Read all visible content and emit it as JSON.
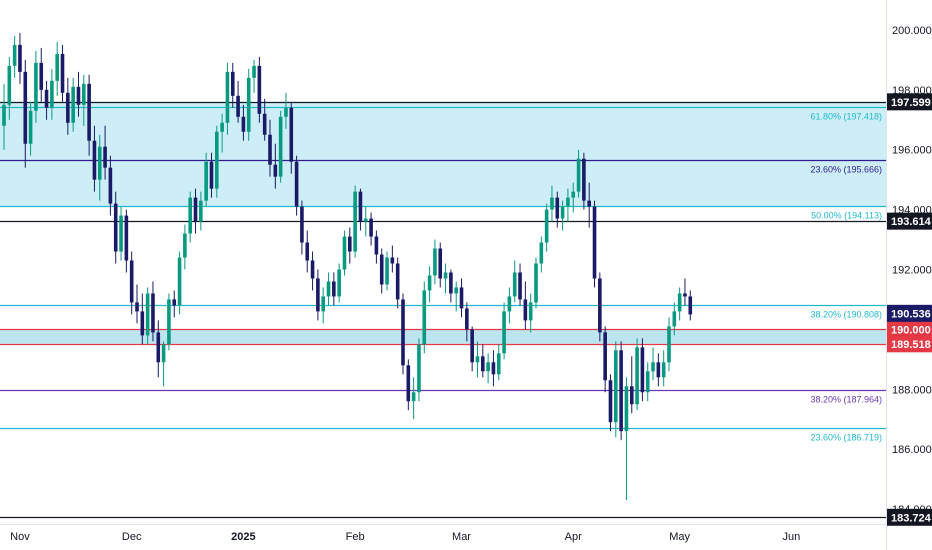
{
  "chart_data": {
    "type": "candlestick",
    "price_axis": {
      "ylim": [
        183.5,
        201.0
      ],
      "tick_values": [
        184,
        186,
        188,
        190,
        192,
        194,
        196,
        198,
        200
      ],
      "tick_labels": [
        "184.000",
        "186.000",
        "188.000",
        "190.000",
        "192.000",
        "194.000",
        "196.000",
        "198.000",
        "200.000"
      ]
    },
    "time_axis": {
      "labels": [
        {
          "text": "Nov",
          "index": 3,
          "bold": false
        },
        {
          "text": "Dec",
          "index": 24,
          "bold": false
        },
        {
          "text": "2025",
          "index": 45,
          "bold": true
        },
        {
          "text": "Feb",
          "index": 66,
          "bold": false
        },
        {
          "text": "Mar",
          "index": 86,
          "bold": false
        },
        {
          "text": "Apr",
          "index": 107,
          "bold": false
        },
        {
          "text": "May",
          "index": 127,
          "bold": false
        },
        {
          "text": "Jun",
          "index": 148,
          "bold": false
        }
      ]
    },
    "zones": [
      {
        "from": 194.113,
        "to": 197.599,
        "color": "#cdeef6"
      },
      {
        "from": 189.518,
        "to": 190.0,
        "color": "#bde5f0"
      }
    ],
    "levels": [
      {
        "value": 197.599,
        "color": "#131722",
        "label": "",
        "badge": "197.599",
        "badge_color": "#131722"
      },
      {
        "value": 197.418,
        "color": "#22b8cf",
        "label": "61.80% (197.418)",
        "badge": "",
        "badge_color": ""
      },
      {
        "value": 195.666,
        "color": "#311b92",
        "label": "23.60% (195.666)",
        "badge": "",
        "badge_color": ""
      },
      {
        "value": 194.113,
        "color": "#22b8cf",
        "label": "50.00% (194.113)",
        "badge": "",
        "badge_color": ""
      },
      {
        "value": 193.614,
        "color": "#131722",
        "label": "",
        "badge": "193.614",
        "badge_color": "#131722"
      },
      {
        "value": 190.808,
        "color": "#22b8cf",
        "label": "38.20% (190.808)",
        "badge": "",
        "badge_color": ""
      },
      {
        "value": 190.0,
        "color": "#e53945",
        "label": "",
        "badge": "190.000",
        "badge_color": "#e53945"
      },
      {
        "value": 189.518,
        "color": "#e53945",
        "label": "",
        "badge": "189.518",
        "badge_color": "#e53945"
      },
      {
        "value": 187.964,
        "color": "#673ab7",
        "label": "38.20% (187.964)",
        "badge": "",
        "badge_color": ""
      },
      {
        "value": 186.719,
        "color": "#22b8cf",
        "label": "23.60% (186.719)",
        "badge": "",
        "badge_color": ""
      },
      {
        "value": 183.724,
        "color": "#131722",
        "label": "",
        "badge": "183.724",
        "badge_color": "#131722"
      }
    ],
    "last_price": {
      "value": 190.536,
      "badge": "190.536",
      "color": "#1a1a66"
    },
    "colors": {
      "up": "#089981",
      "down": "#1a1a66"
    },
    "candles": [
      [
        196.8,
        198.2,
        196.0,
        197.5
      ],
      [
        197.5,
        199.1,
        197.0,
        198.8
      ],
      [
        198.8,
        199.8,
        198.4,
        199.5
      ],
      [
        199.5,
        199.9,
        198.2,
        198.6
      ],
      [
        198.6,
        199.0,
        195.4,
        196.2
      ],
      [
        196.2,
        197.6,
        195.8,
        197.3
      ],
      [
        197.3,
        199.3,
        196.9,
        198.9
      ],
      [
        198.9,
        199.4,
        197.6,
        198.0
      ],
      [
        198.0,
        198.3,
        197.0,
        197.4
      ],
      [
        197.4,
        198.7,
        197.0,
        198.3
      ],
      [
        198.3,
        199.6,
        197.8,
        199.2
      ],
      [
        199.2,
        199.5,
        197.6,
        197.9
      ],
      [
        197.9,
        198.4,
        196.5,
        196.9
      ],
      [
        196.9,
        198.4,
        196.6,
        198.1
      ],
      [
        198.1,
        198.6,
        197.1,
        197.5
      ],
      [
        197.5,
        198.5,
        196.8,
        198.2
      ],
      [
        198.2,
        198.5,
        195.8,
        196.3
      ],
      [
        196.3,
        196.8,
        194.6,
        195.0
      ],
      [
        195.0,
        196.5,
        194.3,
        196.1
      ],
      [
        196.1,
        196.8,
        195.0,
        195.4
      ],
      [
        195.4,
        195.8,
        193.8,
        194.2
      ],
      [
        194.2,
        194.6,
        192.2,
        192.6
      ],
      [
        192.6,
        194.1,
        192.3,
        193.8
      ],
      [
        193.8,
        194.0,
        191.9,
        192.3
      ],
      [
        192.3,
        192.6,
        190.5,
        190.9
      ],
      [
        190.9,
        191.5,
        190.2,
        190.6
      ],
      [
        190.6,
        191.2,
        189.5,
        189.8
      ],
      [
        189.8,
        191.4,
        189.5,
        191.2
      ],
      [
        191.2,
        191.6,
        189.6,
        189.9
      ],
      [
        189.9,
        190.3,
        188.4,
        188.9
      ],
      [
        188.9,
        189.6,
        188.1,
        189.5
      ],
      [
        189.5,
        191.2,
        189.3,
        191.0
      ],
      [
        191.0,
        191.3,
        190.4,
        190.8
      ],
      [
        190.8,
        192.6,
        190.5,
        192.4
      ],
      [
        192.4,
        193.5,
        192.0,
        193.2
      ],
      [
        193.2,
        194.6,
        192.9,
        194.4
      ],
      [
        194.4,
        194.7,
        193.2,
        193.6
      ],
      [
        193.6,
        194.6,
        193.3,
        194.3
      ],
      [
        194.3,
        195.9,
        194.1,
        195.6
      ],
      [
        195.6,
        195.9,
        194.4,
        194.7
      ],
      [
        194.7,
        196.8,
        194.4,
        196.6
      ],
      [
        196.6,
        197.2,
        195.9,
        196.9
      ],
      [
        196.9,
        198.9,
        196.5,
        198.6
      ],
      [
        198.6,
        198.9,
        197.4,
        197.8
      ],
      [
        197.8,
        198.3,
        196.9,
        197.1
      ],
      [
        197.1,
        197.5,
        196.3,
        196.6
      ],
      [
        196.6,
        198.7,
        196.3,
        198.4
      ],
      [
        198.4,
        199.0,
        197.9,
        198.8
      ],
      [
        198.8,
        199.1,
        196.9,
        197.2
      ],
      [
        197.2,
        197.7,
        196.3,
        196.5
      ],
      [
        196.5,
        197.0,
        195.1,
        195.5
      ],
      [
        195.5,
        196.2,
        194.7,
        195.1
      ],
      [
        195.1,
        197.3,
        194.9,
        197.1
      ],
      [
        197.1,
        197.9,
        196.7,
        197.4
      ],
      [
        197.4,
        197.6,
        195.2,
        195.6
      ],
      [
        195.6,
        195.8,
        193.8,
        194.1
      ],
      [
        194.1,
        194.3,
        192.5,
        192.9
      ],
      [
        192.9,
        193.3,
        191.9,
        192.3
      ],
      [
        192.3,
        192.6,
        191.3,
        191.7
      ],
      [
        191.7,
        192.0,
        190.3,
        190.6
      ],
      [
        190.6,
        191.4,
        190.2,
        191.1
      ],
      [
        191.1,
        191.9,
        190.8,
        191.6
      ],
      [
        191.6,
        191.9,
        190.8,
        191.1
      ],
      [
        191.1,
        192.2,
        190.9,
        192.0
      ],
      [
        192.0,
        193.3,
        191.8,
        193.1
      ],
      [
        193.1,
        193.4,
        192.2,
        192.6
      ],
      [
        192.6,
        194.8,
        192.4,
        194.6
      ],
      [
        194.6,
        194.7,
        193.3,
        193.6
      ],
      [
        193.6,
        194.1,
        193.1,
        193.7
      ],
      [
        193.7,
        193.9,
        192.8,
        193.1
      ],
      [
        193.1,
        193.3,
        192.2,
        192.5
      ],
      [
        192.5,
        192.7,
        191.2,
        191.5
      ],
      [
        191.5,
        192.6,
        191.3,
        192.4
      ],
      [
        192.4,
        192.8,
        191.9,
        192.2
      ],
      [
        192.2,
        192.4,
        190.7,
        191.0
      ],
      [
        191.0,
        191.2,
        188.5,
        188.8
      ],
      [
        188.8,
        189.0,
        187.3,
        187.6
      ],
      [
        187.6,
        188.4,
        187.0,
        187.9
      ],
      [
        187.9,
        189.7,
        187.6,
        189.5
      ],
      [
        189.5,
        191.6,
        189.2,
        191.3
      ],
      [
        191.3,
        192.1,
        190.9,
        191.8
      ],
      [
        191.8,
        193.0,
        191.5,
        192.7
      ],
      [
        192.7,
        192.9,
        191.4,
        191.7
      ],
      [
        191.7,
        192.2,
        191.2,
        191.9
      ],
      [
        191.9,
        192.0,
        190.9,
        191.2
      ],
      [
        191.2,
        191.6,
        190.6,
        191.4
      ],
      [
        191.4,
        191.7,
        190.4,
        190.7
      ],
      [
        190.7,
        190.9,
        189.6,
        190.0
      ],
      [
        190.0,
        190.1,
        188.6,
        188.9
      ],
      [
        188.9,
        189.6,
        188.4,
        189.1
      ],
      [
        189.1,
        189.5,
        188.4,
        188.6
      ],
      [
        188.6,
        189.2,
        188.2,
        188.9
      ],
      [
        188.9,
        189.3,
        188.1,
        188.5
      ],
      [
        188.5,
        189.5,
        188.3,
        189.2
      ],
      [
        189.2,
        190.9,
        189.0,
        190.6
      ],
      [
        190.6,
        191.4,
        190.2,
        191.1
      ],
      [
        191.1,
        192.3,
        190.9,
        191.9
      ],
      [
        191.9,
        192.2,
        190.8,
        191.0
      ],
      [
        191.0,
        191.6,
        190.0,
        190.3
      ],
      [
        190.3,
        191.2,
        189.9,
        190.9
      ],
      [
        190.9,
        192.4,
        190.7,
        192.2
      ],
      [
        192.2,
        193.1,
        191.9,
        192.9
      ],
      [
        192.9,
        194.2,
        192.6,
        194.0
      ],
      [
        194.0,
        194.8,
        193.6,
        194.4
      ],
      [
        194.4,
        194.6,
        193.4,
        193.7
      ],
      [
        193.7,
        194.3,
        193.3,
        194.1
      ],
      [
        194.1,
        194.7,
        193.6,
        194.4
      ],
      [
        194.4,
        194.9,
        193.9,
        194.6
      ],
      [
        194.6,
        196.0,
        194.4,
        195.7
      ],
      [
        195.7,
        195.9,
        194.0,
        194.3
      ],
      [
        194.3,
        194.9,
        193.4,
        194.1
      ],
      [
        194.1,
        194.3,
        191.4,
        191.7
      ],
      [
        191.7,
        191.9,
        189.6,
        189.9
      ],
      [
        189.9,
        190.1,
        187.9,
        188.3
      ],
      [
        188.3,
        188.5,
        186.6,
        186.9
      ],
      [
        186.9,
        189.6,
        186.4,
        189.3
      ],
      [
        189.3,
        189.6,
        186.3,
        186.6
      ],
      [
        186.6,
        188.4,
        184.3,
        188.1
      ],
      [
        188.1,
        189.1,
        187.2,
        187.5
      ],
      [
        187.5,
        189.7,
        187.3,
        189.4
      ],
      [
        189.4,
        189.7,
        187.6,
        187.9
      ],
      [
        187.9,
        188.9,
        187.6,
        188.6
      ],
      [
        188.6,
        189.4,
        188.3,
        188.9
      ],
      [
        188.9,
        189.2,
        188.1,
        188.4
      ],
      [
        188.4,
        189.3,
        188.1,
        188.9
      ],
      [
        188.9,
        190.4,
        188.6,
        190.1
      ],
      [
        190.1,
        190.9,
        189.8,
        190.6
      ],
      [
        190.6,
        191.4,
        190.3,
        191.2
      ],
      [
        191.2,
        191.7,
        190.8,
        191.1
      ],
      [
        191.1,
        191.3,
        190.3,
        190.5
      ]
    ]
  }
}
